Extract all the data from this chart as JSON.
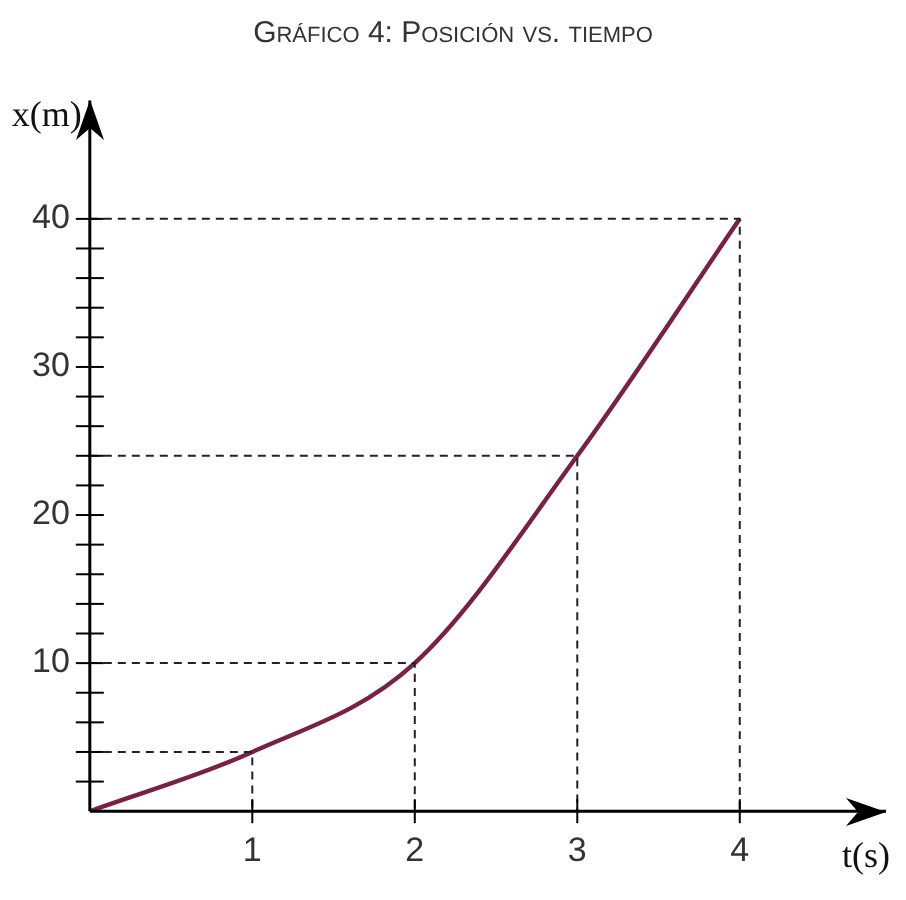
{
  "chart_data": {
    "type": "line",
    "title": "Gráfico 4: Posición vs. tiempo",
    "xlabel": "t(s)",
    "ylabel": "x(m)",
    "x": [
      0,
      1,
      2,
      3,
      4
    ],
    "series": [
      {
        "color": "#7a1f45",
        "values": [
          0,
          4,
          10,
          24,
          40
        ]
      },
      {
        "color": "#222222",
        "line_style": "dashed",
        "x": [
          0,
          1,
          1
        ],
        "values": [
          4,
          4,
          0
        ]
      },
      {
        "color": "#222222",
        "line_style": "dashed",
        "x": [
          0,
          2,
          2
        ],
        "values": [
          10,
          10,
          0
        ]
      },
      {
        "color": "#222222",
        "line_style": "dashed",
        "x": [
          0,
          3,
          3
        ],
        "values": [
          24,
          24,
          0
        ]
      },
      {
        "color": "#222222",
        "line_style": "dashed",
        "x": [
          0,
          4,
          4
        ],
        "values": [
          40,
          40,
          0
        ]
      }
    ],
    "xlim": [
      0,
      4.9
    ],
    "ylim": [
      0,
      48
    ],
    "xticks": [
      1,
      2,
      3,
      4
    ],
    "yticks": [
      {
        "value": 2,
        "label": null
      },
      {
        "value": 4,
        "label": null
      },
      {
        "value": 6,
        "label": null
      },
      {
        "value": 8,
        "label": null
      },
      10,
      {
        "value": 12,
        "label": null
      },
      {
        "value": 14,
        "label": null
      },
      {
        "value": 16,
        "label": null
      },
      {
        "value": 18,
        "label": null
      },
      20,
      {
        "value": 22,
        "label": null
      },
      {
        "value": 24,
        "label": null
      },
      {
        "value": 26,
        "label": null
      },
      {
        "value": 28,
        "label": null
      },
      30,
      {
        "value": 32,
        "label": null
      },
      {
        "value": 34,
        "label": null
      },
      {
        "value": 36,
        "label": null
      },
      {
        "value": 38,
        "label": null
      },
      40
    ],
    "grid": false,
    "legend": false,
    "marker": "none",
    "line_style": "solid"
  }
}
